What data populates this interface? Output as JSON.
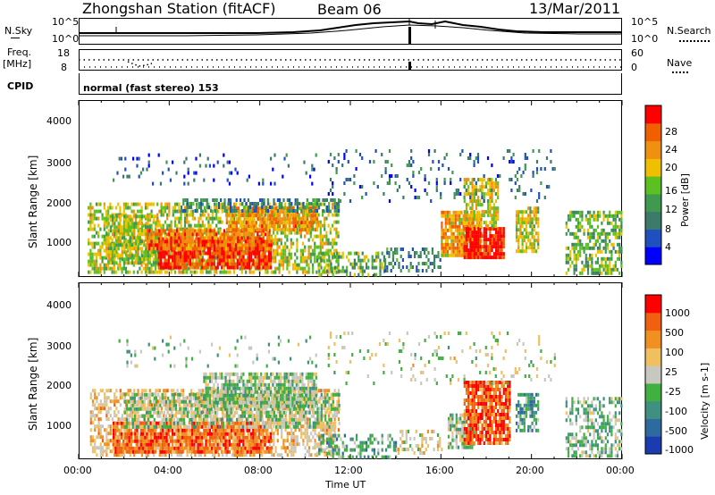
{
  "header": {
    "station": "Zhongshan Station (fitACF)",
    "beam": "Beam 06",
    "date": "13/Mar/2011"
  },
  "top_panels": {
    "nsky_label": "N.Sky",
    "nsky_tick_high": "10^5",
    "nsky_tick_low": "10^0",
    "nsearch_label": "N.Search",
    "nsearch_tick_high": "10^5",
    "nsearch_tick_low": "10^0",
    "freq_label_1": "Freq.",
    "freq_label_2": "[MHz]",
    "freq_tick_high": "18",
    "freq_tick_low": "8",
    "nave_label": "Nave",
    "nave_tick_high": "60",
    "nave_tick_low": "0",
    "cpid_label": "CPID",
    "cpid_text": "normal (fast stereo) 153"
  },
  "power_panel": {
    "ylabel": "Slant Range [km]",
    "yticks": [
      "4000",
      "3000",
      "2000",
      "1000"
    ],
    "colorbar_label": "Power [dB]",
    "colorbar_ticks": [
      "28",
      "24",
      "20",
      "16",
      "12",
      "8",
      "4"
    ],
    "colors": [
      "#0000ff",
      "#2050c0",
      "#3c7a6a",
      "#3f9a50",
      "#5cc020",
      "#f0c000",
      "#f09010",
      "#f06000",
      "#ff0000"
    ]
  },
  "velocity_panel": {
    "ylabel": "Slant Range [km]",
    "yticks": [
      "4000",
      "3000",
      "2000",
      "1000"
    ],
    "colorbar_label": "Velocity [m s-1]",
    "colorbar_ticks": [
      "1000",
      "500",
      "100",
      "25",
      "-25",
      "-100",
      "-500",
      "-1000"
    ],
    "colors": [
      "#1a3cb0",
      "#2e6aa0",
      "#3f9080",
      "#40b040",
      "#c8c8c0",
      "#f0c060",
      "#f09020",
      "#f06010",
      "#ff0000"
    ]
  },
  "x_axis": {
    "ticks": [
      "00:00",
      "04:00",
      "08:00",
      "12:00",
      "16:00",
      "20:00",
      "00:00"
    ],
    "label": "Time UT"
  },
  "chart_data": [
    {
      "type": "heatmap",
      "name_ref": "power_panel",
      "x_range_hours": [
        0,
        24
      ],
      "ylim": [
        180,
        4500
      ],
      "blobs": [
        {
          "t0": 0.4,
          "t1": 11.5,
          "r0": 300,
          "r1": 2000,
          "level": 0.55,
          "density": 0.55
        },
        {
          "t0": 1.2,
          "t1": 3.5,
          "r0": 500,
          "r1": 1700,
          "level": 0.55,
          "density": 0.75
        },
        {
          "t0": 3.5,
          "t1": 8.5,
          "r0": 450,
          "r1": 1150,
          "level": 0.92,
          "density": 0.85
        },
        {
          "t0": 3.0,
          "t1": 8.5,
          "r0": 900,
          "r1": 1350,
          "level": 0.8,
          "density": 0.8
        },
        {
          "t0": 6.5,
          "t1": 10.5,
          "r0": 1350,
          "r1": 1900,
          "level": 0.72,
          "density": 0.8
        },
        {
          "t0": 4.5,
          "t1": 11.5,
          "r0": 1800,
          "r1": 2100,
          "level": 0.3,
          "density": 0.5
        },
        {
          "t0": 10.5,
          "t1": 13.5,
          "r0": 250,
          "r1": 800,
          "level": 0.45,
          "density": 0.45
        },
        {
          "t0": 13.5,
          "t1": 16.0,
          "r0": 300,
          "r1": 900,
          "level": 0.3,
          "density": 0.35
        },
        {
          "t0": 16.0,
          "t1": 17.8,
          "r0": 700,
          "r1": 1800,
          "level": 0.7,
          "density": 0.85
        },
        {
          "t0": 17.0,
          "t1": 18.8,
          "r0": 700,
          "r1": 1400,
          "level": 0.95,
          "density": 0.9
        },
        {
          "t0": 17.0,
          "t1": 18.5,
          "r0": 1400,
          "r1": 2600,
          "level": 0.6,
          "density": 0.6
        },
        {
          "t0": 19.3,
          "t1": 20.3,
          "r0": 800,
          "r1": 1900,
          "level": 0.6,
          "density": 0.7
        },
        {
          "t0": 21.5,
          "t1": 24.0,
          "r0": 300,
          "r1": 1800,
          "level": 0.45,
          "density": 0.55
        },
        {
          "t0": 1.5,
          "t1": 10.5,
          "r0": 2500,
          "r1": 3200,
          "level": 0.2,
          "density": 0.08
        },
        {
          "t0": 11.0,
          "t1": 21.0,
          "r0": 2000,
          "r1": 3300,
          "level": 0.25,
          "density": 0.1
        }
      ]
    },
    {
      "type": "heatmap",
      "name_ref": "velocity_panel",
      "x_range_hours": [
        0,
        24
      ],
      "ylim": [
        180,
        4500
      ],
      "blobs": [
        {
          "t0": 0.5,
          "t1": 11.5,
          "r0": 300,
          "r1": 1900,
          "level": 0.62,
          "density": 0.5
        },
        {
          "t0": 1.5,
          "t1": 8.5,
          "r0": 350,
          "r1": 1100,
          "level": 0.8,
          "density": 0.85
        },
        {
          "t0": 2.0,
          "t1": 11.5,
          "r0": 1000,
          "r1": 1800,
          "level": 0.45,
          "density": 0.6
        },
        {
          "t0": 5.5,
          "t1": 10.5,
          "r0": 1500,
          "r1": 2300,
          "level": 0.45,
          "density": 0.8
        },
        {
          "t0": 10.5,
          "t1": 14.0,
          "r0": 250,
          "r1": 800,
          "level": 0.35,
          "density": 0.45
        },
        {
          "t0": 14.0,
          "t1": 16.0,
          "r0": 300,
          "r1": 900,
          "level": 0.55,
          "density": 0.35
        },
        {
          "t0": 16.3,
          "t1": 17.5,
          "r0": 500,
          "r1": 1300,
          "level": 0.45,
          "density": 0.7
        },
        {
          "t0": 17.0,
          "t1": 19.0,
          "r0": 600,
          "r1": 2100,
          "level": 0.82,
          "density": 0.85
        },
        {
          "t0": 19.3,
          "t1": 20.3,
          "r0": 900,
          "r1": 1800,
          "level": 0.3,
          "density": 0.6
        },
        {
          "t0": 21.5,
          "t1": 24.0,
          "r0": 300,
          "r1": 1700,
          "level": 0.4,
          "density": 0.5
        },
        {
          "t0": 1.5,
          "t1": 10.5,
          "r0": 2500,
          "r1": 3200,
          "level": 0.4,
          "density": 0.08
        },
        {
          "t0": 11.0,
          "t1": 21.0,
          "r0": 2000,
          "r1": 3300,
          "level": 0.5,
          "density": 0.1
        }
      ]
    }
  ]
}
